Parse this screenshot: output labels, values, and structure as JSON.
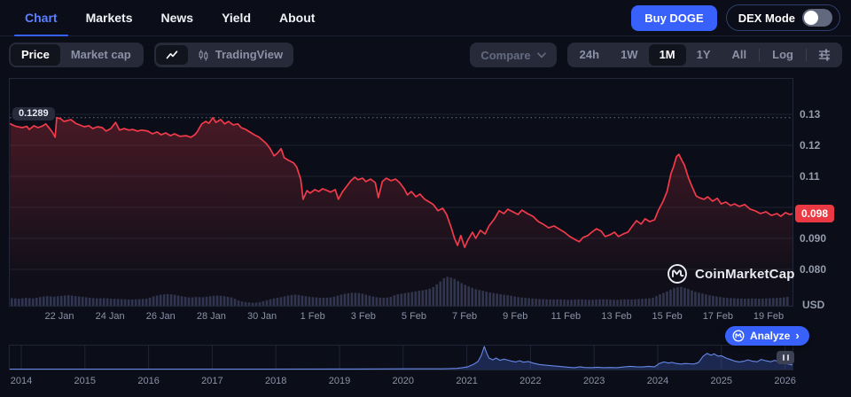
{
  "colors": {
    "accent_blue": "#3861fb",
    "active_tab": "#5b80ff",
    "red_line": "#f13a4a",
    "red_badge": "#ea3943",
    "mini_blue": "#6787e6",
    "volume_bar": "#2c3550",
    "grid": "#1b2130",
    "axis_text": "#959cae"
  },
  "nav": {
    "tabs": [
      {
        "label": "Chart",
        "active": true
      },
      {
        "label": "Markets",
        "active": false
      },
      {
        "label": "News",
        "active": false
      },
      {
        "label": "Yield",
        "active": false
      },
      {
        "label": "About",
        "active": false
      }
    ],
    "buy_button": "Buy DOGE",
    "dex_mode": {
      "label": "DEX Mode",
      "enabled": false
    }
  },
  "toolbar": {
    "metric_toggle": [
      {
        "label": "Price",
        "active": true
      },
      {
        "label": "Market cap",
        "active": false
      }
    ],
    "chart_type": {
      "line_icon_active": true,
      "tradingview_label": "TradingView"
    },
    "compare_label": "Compare",
    "ranges": [
      {
        "label": "24h",
        "active": false
      },
      {
        "label": "1W",
        "active": false
      },
      {
        "label": "1M",
        "active": true
      },
      {
        "label": "1Y",
        "active": false
      },
      {
        "label": "All",
        "active": false
      }
    ],
    "log_label": "Log"
  },
  "chart": {
    "high_label": "0.1289",
    "current_price_label": "0.098",
    "unit": "USD",
    "watermark": "CoinMarketCap",
    "analyze_label": "Analyze",
    "x_ticks": [
      "22 Jan",
      "24 Jan",
      "26 Jan",
      "28 Jan",
      "30 Jan",
      "1 Feb",
      "3 Feb",
      "5 Feb",
      "7 Feb",
      "9 Feb",
      "11 Feb",
      "13 Feb",
      "15 Feb",
      "17 Feb",
      "19 Feb"
    ]
  },
  "timeline": {
    "years": [
      "2014",
      "2015",
      "2016",
      "2017",
      "2018",
      "2019",
      "2020",
      "2021",
      "2022",
      "2023",
      "2024",
      "2025",
      "2026"
    ]
  },
  "chart_data": {
    "type": "line",
    "title": "DOGE price, 1M range, USD",
    "unit": "USD",
    "y_domain": [
      0.068,
      0.1417
    ],
    "y_ticks": [
      {
        "label": "0.13",
        "value": 0.13
      },
      {
        "label": "0.12",
        "value": 0.12
      },
      {
        "label": "0.11",
        "value": 0.11
      },
      {
        "label": "0.090",
        "value": 0.09
      },
      {
        "label": "0.080",
        "value": 0.08
      }
    ],
    "period_high": {
      "label": "0.1289",
      "value": 0.1289
    },
    "current_price": {
      "label": "0.098",
      "value": 0.098
    },
    "x_tick_labels": [
      "22 Jan",
      "24 Jan",
      "26 Jan",
      "28 Jan",
      "30 Jan",
      "1 Feb",
      "3 Feb",
      "5 Feb",
      "7 Feb",
      "9 Feb",
      "11 Feb",
      "13 Feb",
      "15 Feb",
      "17 Feb",
      "19 Feb"
    ],
    "price_points": [
      [
        0.002,
        0.1269
      ],
      [
        0.009,
        0.1261
      ],
      [
        0.017,
        0.1257
      ],
      [
        0.023,
        0.1261
      ],
      [
        0.026,
        0.1251
      ],
      [
        0.032,
        0.1263
      ],
      [
        0.037,
        0.1257
      ],
      [
        0.042,
        0.1261
      ],
      [
        0.047,
        0.1269
      ],
      [
        0.052,
        0.1254
      ],
      [
        0.056,
        0.124
      ],
      [
        0.059,
        0.1226
      ],
      [
        0.061,
        0.1289
      ],
      [
        0.066,
        0.1286
      ],
      [
        0.07,
        0.1277
      ],
      [
        0.075,
        0.128
      ],
      [
        0.079,
        0.1283
      ],
      [
        0.085,
        0.1271
      ],
      [
        0.09,
        0.1266
      ],
      [
        0.096,
        0.126
      ],
      [
        0.102,
        0.1263
      ],
      [
        0.107,
        0.1254
      ],
      [
        0.113,
        0.126
      ],
      [
        0.119,
        0.1257
      ],
      [
        0.124,
        0.1246
      ],
      [
        0.13,
        0.1254
      ],
      [
        0.136,
        0.1274
      ],
      [
        0.141,
        0.1249
      ],
      [
        0.147,
        0.1254
      ],
      [
        0.153,
        0.1249
      ],
      [
        0.158,
        0.1251
      ],
      [
        0.164,
        0.1246
      ],
      [
        0.169,
        0.1249
      ],
      [
        0.177,
        0.1246
      ],
      [
        0.183,
        0.1237
      ],
      [
        0.189,
        0.1243
      ],
      [
        0.194,
        0.1234
      ],
      [
        0.2,
        0.124
      ],
      [
        0.206,
        0.1231
      ],
      [
        0.211,
        0.1237
      ],
      [
        0.218,
        0.1229
      ],
      [
        0.226,
        0.1231
      ],
      [
        0.232,
        0.1226
      ],
      [
        0.237,
        0.1234
      ],
      [
        0.24,
        0.1243
      ],
      [
        0.243,
        0.1257
      ],
      [
        0.246,
        0.1269
      ],
      [
        0.251,
        0.1277
      ],
      [
        0.255,
        0.1271
      ],
      [
        0.26,
        0.1289
      ],
      [
        0.264,
        0.1274
      ],
      [
        0.27,
        0.1283
      ],
      [
        0.275,
        0.1269
      ],
      [
        0.28,
        0.1277
      ],
      [
        0.286,
        0.1266
      ],
      [
        0.292,
        0.1269
      ],
      [
        0.296,
        0.1257
      ],
      [
        0.302,
        0.1251
      ],
      [
        0.307,
        0.1243
      ],
      [
        0.313,
        0.1234
      ],
      [
        0.319,
        0.1226
      ],
      [
        0.323,
        0.1217
      ],
      [
        0.328,
        0.1206
      ],
      [
        0.333,
        0.1189
      ],
      [
        0.338,
        0.1166
      ],
      [
        0.342,
        0.1174
      ],
      [
        0.347,
        0.1189
      ],
      [
        0.351,
        0.116
      ],
      [
        0.357,
        0.1151
      ],
      [
        0.363,
        0.1143
      ],
      [
        0.367,
        0.1129
      ],
      [
        0.372,
        0.1091
      ],
      [
        0.375,
        0.1026
      ],
      [
        0.38,
        0.1054
      ],
      [
        0.384,
        0.1046
      ],
      [
        0.39,
        0.1057
      ],
      [
        0.395,
        0.1051
      ],
      [
        0.4,
        0.106
      ],
      [
        0.406,
        0.1054
      ],
      [
        0.41,
        0.1049
      ],
      [
        0.416,
        0.1057
      ],
      [
        0.42,
        0.1026
      ],
      [
        0.425,
        0.1049
      ],
      [
        0.43,
        0.1066
      ],
      [
        0.436,
        0.1086
      ],
      [
        0.441,
        0.1097
      ],
      [
        0.445,
        0.1089
      ],
      [
        0.451,
        0.1094
      ],
      [
        0.455,
        0.1083
      ],
      [
        0.461,
        0.1091
      ],
      [
        0.467,
        0.108
      ],
      [
        0.471,
        0.1031
      ],
      [
        0.476,
        0.1083
      ],
      [
        0.481,
        0.1094
      ],
      [
        0.487,
        0.1086
      ],
      [
        0.493,
        0.1091
      ],
      [
        0.498,
        0.108
      ],
      [
        0.504,
        0.106
      ],
      [
        0.508,
        0.104
      ],
      [
        0.513,
        0.1051
      ],
      [
        0.519,
        0.1034
      ],
      [
        0.524,
        0.1043
      ],
      [
        0.53,
        0.1026
      ],
      [
        0.536,
        0.1017
      ],
      [
        0.541,
        0.1009
      ],
      [
        0.547,
        0.0989
      ],
      [
        0.553,
        0.0997
      ],
      [
        0.558,
        0.0977
      ],
      [
        0.564,
        0.0934
      ],
      [
        0.568,
        0.09
      ],
      [
        0.572,
        0.0877
      ],
      [
        0.576,
        0.0909
      ],
      [
        0.581,
        0.0871
      ],
      [
        0.585,
        0.0894
      ],
      [
        0.591,
        0.092
      ],
      [
        0.595,
        0.09
      ],
      [
        0.601,
        0.0926
      ],
      [
        0.607,
        0.0914
      ],
      [
        0.612,
        0.094
      ],
      [
        0.619,
        0.0963
      ],
      [
        0.625,
        0.0989
      ],
      [
        0.631,
        0.098
      ],
      [
        0.636,
        0.0994
      ],
      [
        0.642,
        0.0986
      ],
      [
        0.649,
        0.0977
      ],
      [
        0.654,
        0.0991
      ],
      [
        0.661,
        0.098
      ],
      [
        0.668,
        0.0971
      ],
      [
        0.675,
        0.0954
      ],
      [
        0.681,
        0.0946
      ],
      [
        0.688,
        0.0934
      ],
      [
        0.695,
        0.094
      ],
      [
        0.702,
        0.0929
      ],
      [
        0.708,
        0.092
      ],
      [
        0.715,
        0.0906
      ],
      [
        0.721,
        0.0897
      ],
      [
        0.727,
        0.0889
      ],
      [
        0.732,
        0.0903
      ],
      [
        0.738,
        0.0909
      ],
      [
        0.743,
        0.092
      ],
      [
        0.749,
        0.0931
      ],
      [
        0.755,
        0.0923
      ],
      [
        0.76,
        0.0906
      ],
      [
        0.766,
        0.0911
      ],
      [
        0.772,
        0.092
      ],
      [
        0.777,
        0.0906
      ],
      [
        0.783,
        0.0914
      ],
      [
        0.789,
        0.092
      ],
      [
        0.794,
        0.0937
      ],
      [
        0.8,
        0.0957
      ],
      [
        0.806,
        0.0946
      ],
      [
        0.811,
        0.0963
      ],
      [
        0.817,
        0.0954
      ],
      [
        0.823,
        0.096
      ],
      [
        0.828,
        0.0991
      ],
      [
        0.834,
        0.102
      ],
      [
        0.839,
        0.1051
      ],
      [
        0.844,
        0.1109
      ],
      [
        0.847,
        0.1129
      ],
      [
        0.851,
        0.1163
      ],
      [
        0.854,
        0.1171
      ],
      [
        0.858,
        0.1151
      ],
      [
        0.861,
        0.1137
      ],
      [
        0.866,
        0.1097
      ],
      [
        0.87,
        0.1071
      ],
      [
        0.876,
        0.1037
      ],
      [
        0.88,
        0.1031
      ],
      [
        0.886,
        0.1026
      ],
      [
        0.891,
        0.1034
      ],
      [
        0.897,
        0.102
      ],
      [
        0.903,
        0.1029
      ],
      [
        0.908,
        0.1011
      ],
      [
        0.914,
        0.1017
      ],
      [
        0.92,
        0.1006
      ],
      [
        0.925,
        0.1011
      ],
      [
        0.931,
        0.1003
      ],
      [
        0.938,
        0.1009
      ],
      [
        0.945,
        0.0994
      ],
      [
        0.951,
        0.0989
      ],
      [
        0.958,
        0.098
      ],
      [
        0.965,
        0.0986
      ],
      [
        0.972,
        0.0974
      ],
      [
        0.979,
        0.098
      ],
      [
        0.984,
        0.0971
      ],
      [
        0.99,
        0.0983
      ],
      [
        0.995,
        0.0977
      ],
      [
        1.0,
        0.098
      ]
    ],
    "volume_profile": [
      0.26,
      0.24,
      0.27,
      0.25,
      0.3,
      0.33,
      0.31,
      0.34,
      0.36,
      0.33,
      0.3,
      0.27,
      0.25,
      0.26,
      0.24,
      0.23,
      0.22,
      0.21,
      0.23,
      0.24,
      0.33,
      0.38,
      0.4,
      0.37,
      0.32,
      0.28,
      0.3,
      0.29,
      0.33,
      0.35,
      0.32,
      0.28,
      0.16,
      0.12,
      0.1,
      0.13,
      0.2,
      0.26,
      0.3,
      0.36,
      0.38,
      0.34,
      0.3,
      0.28,
      0.27,
      0.29,
      0.36,
      0.42,
      0.45,
      0.43,
      0.36,
      0.3,
      0.27,
      0.28,
      0.38,
      0.42,
      0.46,
      0.5,
      0.54,
      0.6,
      0.78,
      1.0,
      0.95,
      0.8,
      0.68,
      0.58,
      0.52,
      0.46,
      0.42,
      0.38,
      0.35,
      0.3,
      0.27,
      0.25,
      0.23,
      0.22,
      0.21,
      0.22,
      0.2,
      0.21,
      0.22,
      0.2,
      0.21,
      0.22,
      0.21,
      0.2,
      0.22,
      0.21,
      0.23,
      0.24,
      0.26,
      0.38,
      0.48,
      0.6,
      0.65,
      0.58,
      0.48,
      0.42,
      0.36,
      0.32,
      0.28,
      0.26,
      0.25,
      0.24,
      0.25,
      0.24,
      0.25,
      0.26,
      0.27,
      0.3
    ],
    "history": {
      "years": [
        2014,
        2015,
        2016,
        2017,
        2018,
        2019,
        2020,
        2021,
        2022,
        2023,
        2024,
        2025,
        2026
      ],
      "points": [
        [
          0,
          0.02
        ],
        [
          0.102,
          0.02
        ],
        [
          0.215,
          0.02
        ],
        [
          0.328,
          0.02
        ],
        [
          0.441,
          0.025
        ],
        [
          0.508,
          0.03
        ],
        [
          0.554,
          0.03
        ],
        [
          0.571,
          0.05
        ],
        [
          0.578,
          0.08
        ],
        [
          0.585,
          0.12
        ],
        [
          0.592,
          0.22
        ],
        [
          0.598,
          0.35
        ],
        [
          0.602,
          0.6
        ],
        [
          0.606,
          1.0
        ],
        [
          0.609,
          0.72
        ],
        [
          0.612,
          0.5
        ],
        [
          0.617,
          0.42
        ],
        [
          0.621,
          0.5
        ],
        [
          0.626,
          0.4
        ],
        [
          0.631,
          0.45
        ],
        [
          0.635,
          0.42
        ],
        [
          0.641,
          0.36
        ],
        [
          0.646,
          0.33
        ],
        [
          0.651,
          0.38
        ],
        [
          0.656,
          0.32
        ],
        [
          0.662,
          0.35
        ],
        [
          0.668,
          0.28
        ],
        [
          0.676,
          0.22
        ],
        [
          0.684,
          0.19
        ],
        [
          0.693,
          0.16
        ],
        [
          0.703,
          0.13
        ],
        [
          0.713,
          0.1
        ],
        [
          0.721,
          0.08
        ],
        [
          0.728,
          0.12
        ],
        [
          0.734,
          0.09
        ],
        [
          0.742,
          0.08
        ],
        [
          0.75,
          0.1
        ],
        [
          0.758,
          0.08
        ],
        [
          0.767,
          0.09
        ],
        [
          0.775,
          0.08
        ],
        [
          0.784,
          0.11
        ],
        [
          0.792,
          0.14
        ],
        [
          0.8,
          0.12
        ],
        [
          0.808,
          0.11
        ],
        [
          0.815,
          0.14
        ],
        [
          0.823,
          0.12
        ],
        [
          0.829,
          0.26
        ],
        [
          0.835,
          0.33
        ],
        [
          0.841,
          0.28
        ],
        [
          0.845,
          0.31
        ],
        [
          0.851,
          0.26
        ],
        [
          0.857,
          0.24
        ],
        [
          0.862,
          0.26
        ],
        [
          0.868,
          0.25
        ],
        [
          0.873,
          0.24
        ],
        [
          0.879,
          0.3
        ],
        [
          0.885,
          0.58
        ],
        [
          0.89,
          0.7
        ],
        [
          0.895,
          0.62
        ],
        [
          0.899,
          0.68
        ],
        [
          0.904,
          0.58
        ],
        [
          0.908,
          0.6
        ],
        [
          0.914,
          0.5
        ],
        [
          0.92,
          0.43
        ],
        [
          0.925,
          0.37
        ],
        [
          0.931,
          0.33
        ],
        [
          0.937,
          0.36
        ],
        [
          0.942,
          0.42
        ],
        [
          0.948,
          0.36
        ],
        [
          0.954,
          0.34
        ],
        [
          0.959,
          0.44
        ],
        [
          0.965,
          0.38
        ],
        [
          0.971,
          0.34
        ],
        [
          0.976,
          0.4
        ],
        [
          0.982,
          0.33
        ],
        [
          0.988,
          0.28
        ],
        [
          0.993,
          0.24
        ],
        [
          0.999,
          0.2
        ]
      ]
    }
  }
}
